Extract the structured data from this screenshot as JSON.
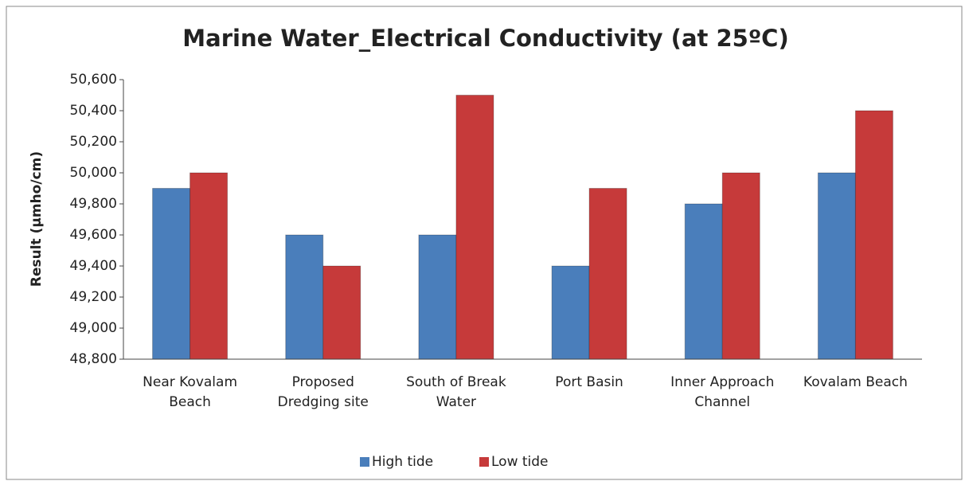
{
  "chart_data": {
    "type": "bar",
    "title": "Marine Water_Electrical Conductivity (at 25ºC)",
    "y_label": "Result (µmho/cm)",
    "categories": [
      "Near Kovalam Beach",
      "Proposed Dredging site",
      "South of Break Water",
      "Port Basin",
      "Inner Approach Channel",
      "Kovalam Beach"
    ],
    "series": [
      {
        "name": "High tide",
        "color": "#4a7ebb",
        "values": [
          49900,
          49600,
          49600,
          49400,
          49800,
          50000
        ]
      },
      {
        "name": "Low tide",
        "color": "#c63a3a",
        "values": [
          50000,
          49400,
          50500,
          49900,
          50000,
          50400
        ]
      }
    ],
    "ylim": [
      48800,
      50600
    ],
    "yticks": [
      {
        "value": 48800,
        "label": "48,800"
      },
      {
        "value": 49000,
        "label": "49,000"
      },
      {
        "value": 49200,
        "label": "49,200"
      },
      {
        "value": 49400,
        "label": "49,400"
      },
      {
        "value": 49600,
        "label": "49,600"
      },
      {
        "value": 49800,
        "label": "49,800"
      },
      {
        "value": 50000,
        "label": "50,000"
      },
      {
        "value": 50200,
        "label": "50,200"
      },
      {
        "value": 50400,
        "label": "50,400"
      },
      {
        "value": 50600,
        "label": "50,600"
      }
    ],
    "grid": false,
    "legend": "bottom"
  }
}
